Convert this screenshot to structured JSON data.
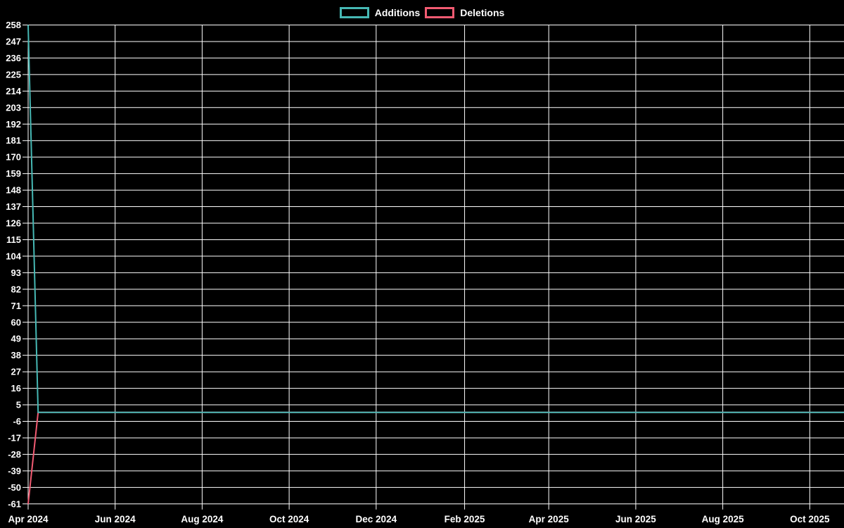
{
  "chart_data": {
    "type": "line",
    "title": "",
    "legend": {
      "position": "top",
      "entries": [
        {
          "label": "Additions",
          "color": "#46b8b4"
        },
        {
          "label": "Deletions",
          "color": "#f25b72"
        }
      ]
    },
    "x_axis": {
      "label": "",
      "origin_date": "2024-04-01",
      "end_date": "2025-10-25",
      "ticks": [
        {
          "label": "Apr 2024",
          "date": "2024-04-01"
        },
        {
          "label": "Jun 2024",
          "date": "2024-06-01"
        },
        {
          "label": "Aug 2024",
          "date": "2024-08-01"
        },
        {
          "label": "Oct 2024",
          "date": "2024-10-01"
        },
        {
          "label": "Dec 2024",
          "date": "2024-12-01"
        },
        {
          "label": "Feb 2025",
          "date": "2025-02-01"
        },
        {
          "label": "Apr 2025",
          "date": "2025-04-01"
        },
        {
          "label": "Jun 2025",
          "date": "2025-06-01"
        },
        {
          "label": "Aug 2025",
          "date": "2025-08-01"
        },
        {
          "label": "Oct 2025",
          "date": "2025-10-01"
        }
      ]
    },
    "y_axis": {
      "label": "",
      "min": -61,
      "max": 258,
      "tick_step": 11,
      "ticks": [
        258,
        247,
        236,
        225,
        214,
        203,
        192,
        181,
        170,
        159,
        148,
        137,
        126,
        115,
        104,
        93,
        82,
        71,
        60,
        49,
        38,
        27,
        16,
        5,
        -6,
        -17,
        -28,
        -39,
        -50,
        -61
      ]
    },
    "grid": true,
    "series": [
      {
        "name": "Deletions",
        "color": "#f25b72",
        "points": [
          {
            "date": "2024-04-01",
            "value": -61
          },
          {
            "date": "2024-04-08",
            "value": 0
          },
          {
            "date": "2025-10-25",
            "value": 0
          }
        ]
      },
      {
        "name": "Additions",
        "color": "#46b8b4",
        "points": [
          {
            "date": "2024-04-01",
            "value": 258
          },
          {
            "date": "2024-04-08",
            "value": 0
          },
          {
            "date": "2025-10-25",
            "value": 0
          }
        ]
      }
    ],
    "colors": {
      "background": "#000000",
      "grid": "#ffffff",
      "text": "#ffffff"
    }
  }
}
